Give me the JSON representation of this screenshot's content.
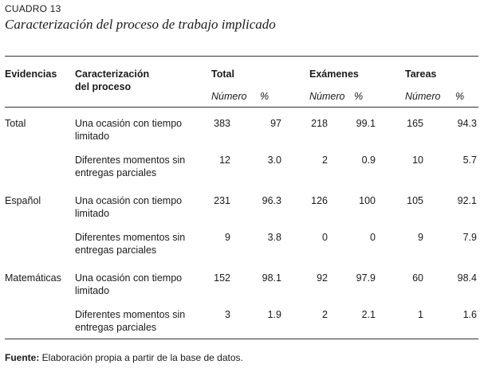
{
  "caption": "CUADRO 13",
  "title": "Caracterización del proceso de trabajo implicado",
  "headers": {
    "evidencias": "Evidencias",
    "caracterizacion_1": "Caracterización",
    "caracterizacion_2": "del proceso",
    "total": "Total",
    "examenes": "Exámenes",
    "tareas": "Tareas",
    "numero": "Número",
    "pct": "%"
  },
  "groups": [
    {
      "label": "Total",
      "rows": [
        {
          "proc1": "Una ocasión con tiempo",
          "proc2": "limitado",
          "tn": "383",
          "tp": "97",
          "en": "218",
          "ep": "99.1",
          "an": "165",
          "ap": "94.3"
        },
        {
          "proc1": "Diferentes momentos sin",
          "proc2": "entregas parciales",
          "tn": "12",
          "tp": "3.0",
          "en": "2",
          "ep": "0.9",
          "an": "10",
          "ap": "5.7"
        }
      ]
    },
    {
      "label": "Español",
      "rows": [
        {
          "proc1": "Una ocasión con tiempo",
          "proc2": "limitado",
          "tn": "231",
          "tp": "96.3",
          "en": "126",
          "ep": "100",
          "an": "105",
          "ap": "92.1"
        },
        {
          "proc1": "Diferentes momentos sin",
          "proc2": "entregas parciales",
          "tn": "9",
          "tp": "3.8",
          "en": "0",
          "ep": "0",
          "an": "9",
          "ap": "7.9"
        }
      ]
    },
    {
      "label": "Matemáticas",
      "rows": [
        {
          "proc1": "Una ocasión con tiempo",
          "proc2": "limitado",
          "tn": "152",
          "tp": "98.1",
          "en": "92",
          "ep": "97.9",
          "an": "60",
          "ap": "98.4"
        },
        {
          "proc1": "Diferentes momentos sin",
          "proc2": "entregas parciales",
          "tn": "3",
          "tp": "1.9",
          "en": "2",
          "ep": "2.1",
          "an": "1",
          "ap": "1.6"
        }
      ]
    }
  ],
  "footnote": {
    "label": "Fuente:",
    "text": " Elaboración propia a partir de la base de datos."
  }
}
